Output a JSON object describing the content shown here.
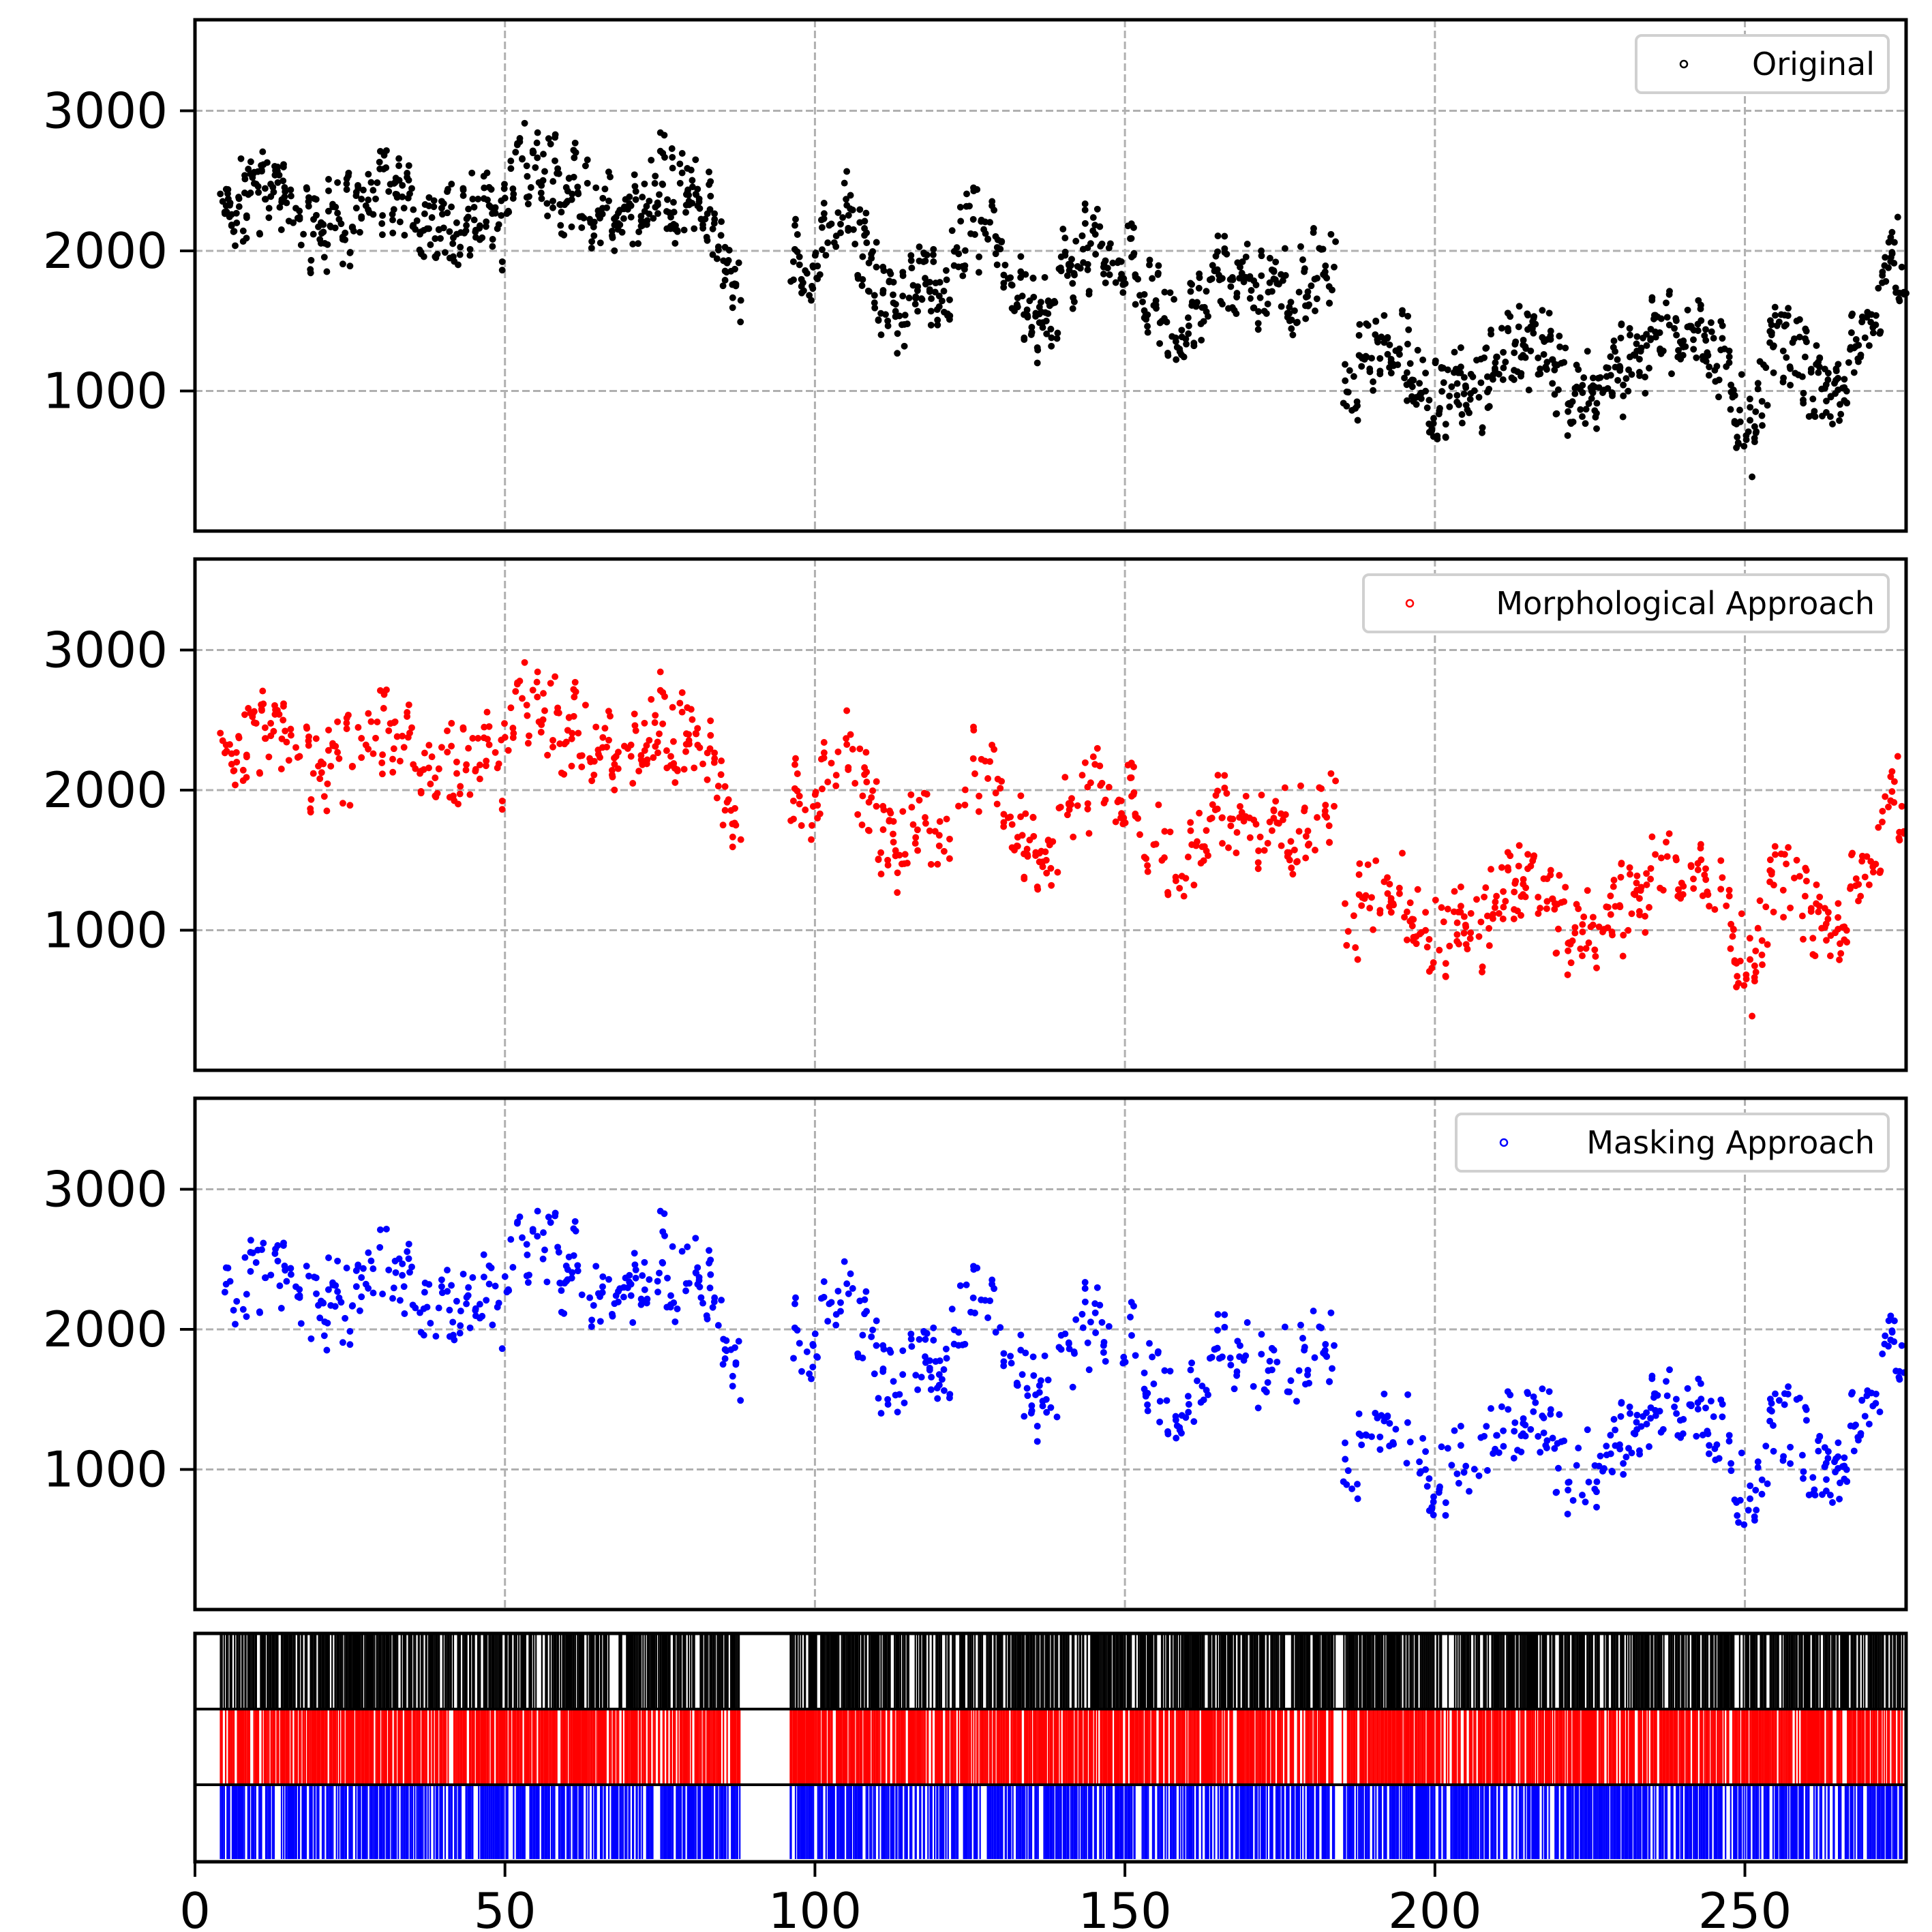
{
  "chart_data": {
    "type": "scatter",
    "x_range": [
      0,
      276
    ],
    "y_range": [
      0,
      3650
    ],
    "x_ticks": [
      0,
      50,
      100,
      150,
      200,
      250
    ],
    "y_ticks": [
      1000,
      2000,
      3000
    ],
    "grid": true,
    "legend_position": "top-right",
    "panels": [
      {
        "name": "Original",
        "color": "#000000",
        "points": []
      },
      {
        "name": "Morphological Approach",
        "color": "#ff0000",
        "points": []
      },
      {
        "name": "Masking Approach",
        "color": "#0000ff",
        "points": []
      }
    ],
    "trend": [
      [
        4,
        2200
      ],
      [
        8,
        2350
      ],
      [
        11,
        2500
      ],
      [
        15,
        2300
      ],
      [
        20,
        2150
      ],
      [
        25,
        2250
      ],
      [
        30,
        2400
      ],
      [
        35,
        2300
      ],
      [
        40,
        2200
      ],
      [
        45,
        2250
      ],
      [
        50,
        2200
      ],
      [
        52,
        2600
      ],
      [
        56,
        2580
      ],
      [
        60,
        2450
      ],
      [
        65,
        2250
      ],
      [
        70,
        2200
      ],
      [
        74,
        2550
      ],
      [
        78,
        2400
      ],
      [
        82,
        2300
      ],
      [
        86,
        1900
      ],
      [
        89,
        1600
      ],
      [
        92,
        1850
      ],
      [
        96,
        1900
      ],
      [
        100,
        1950
      ],
      [
        103,
        2250
      ],
      [
        106,
        2200
      ],
      [
        110,
        1750
      ],
      [
        113,
        1500
      ],
      [
        117,
        1800
      ],
      [
        121,
        1750
      ],
      [
        124,
        2100
      ],
      [
        128,
        2150
      ],
      [
        132,
        1800
      ],
      [
        136,
        1450
      ],
      [
        140,
        1800
      ],
      [
        145,
        2050
      ],
      [
        150,
        1950
      ],
      [
        155,
        1700
      ],
      [
        158,
        1350
      ],
      [
        162,
        1550
      ],
      [
        166,
        1800
      ],
      [
        170,
        1750
      ],
      [
        175,
        1650
      ],
      [
        180,
        1850
      ],
      [
        184,
        1950
      ],
      [
        185,
        1000
      ],
      [
        189,
        1150
      ],
      [
        192,
        1350
      ],
      [
        196,
        1250
      ],
      [
        200,
        900
      ],
      [
        203,
        1100
      ],
      [
        207,
        1000
      ],
      [
        211,
        1350
      ],
      [
        215,
        1350
      ],
      [
        219,
        1200
      ],
      [
        223,
        900
      ],
      [
        227,
        1100
      ],
      [
        231,
        1200
      ],
      [
        235,
        1400
      ],
      [
        239,
        1400
      ],
      [
        243,
        1350
      ],
      [
        247,
        1100
      ],
      [
        251,
        700
      ],
      [
        254,
        1300
      ],
      [
        257,
        1400
      ],
      [
        261,
        1100
      ],
      [
        265,
        950
      ],
      [
        268,
        1300
      ],
      [
        271,
        1600
      ],
      [
        274,
        1900
      ],
      [
        276,
        1850
      ]
    ],
    "gaps": [
      [
        0,
        4
      ],
      [
        88,
        96
      ],
      [
        184,
        185
      ]
    ],
    "event_strips": [
      {
        "color": "#000000",
        "density": 0.55
      },
      {
        "color": "#ff0000",
        "density": 0.6
      },
      {
        "color": "#0000ff",
        "density": 0.5
      }
    ]
  },
  "legend": {
    "original": "Original",
    "morphological": "Morphological Approach",
    "masking": "Masking Approach"
  },
  "y_tick_labels": [
    "3000",
    "2000",
    "1000"
  ],
  "x_tick_labels": [
    "0",
    "50",
    "100",
    "150",
    "200",
    "250"
  ]
}
